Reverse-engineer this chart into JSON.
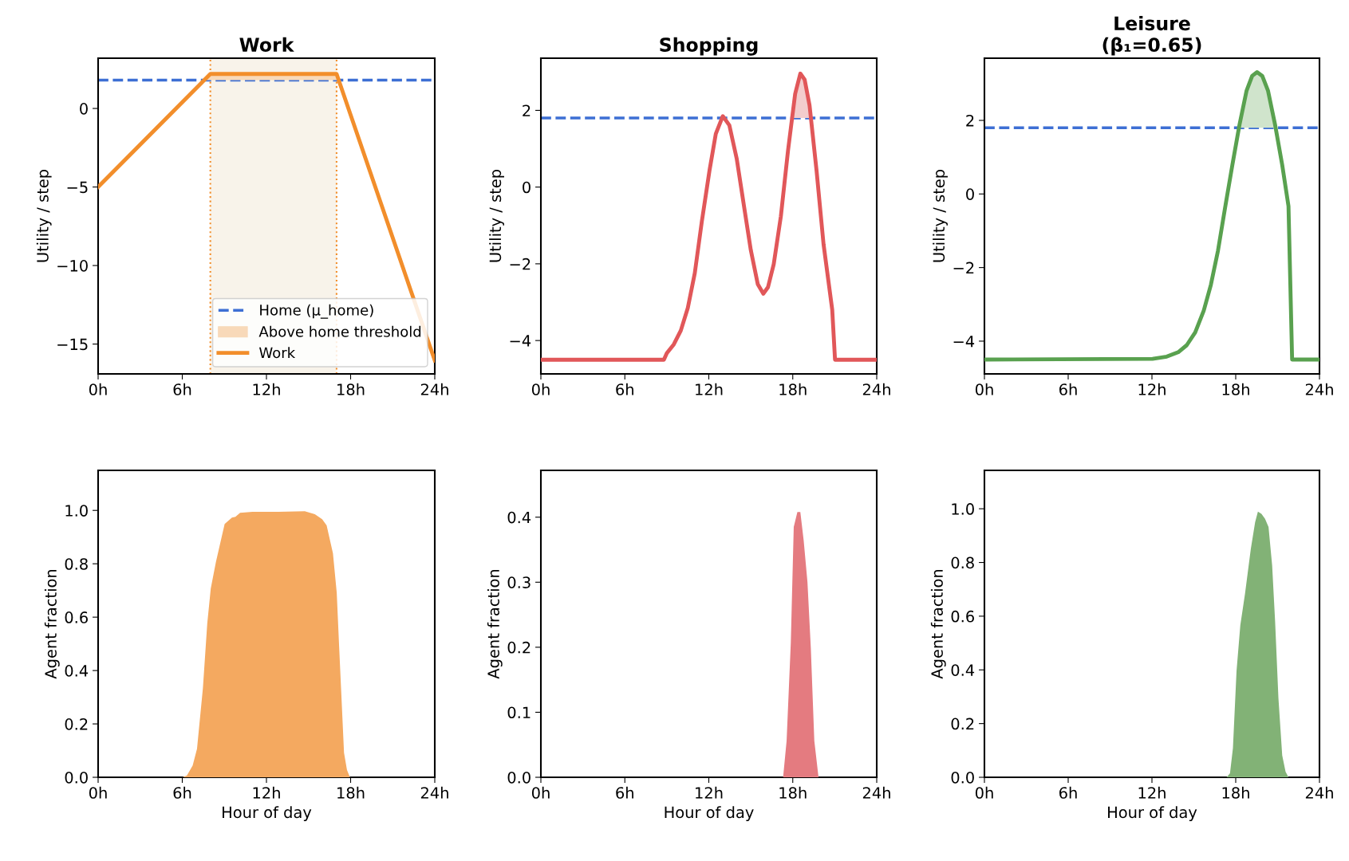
{
  "chart_data": [
    {
      "type": "line",
      "title": "Work",
      "ylabel": "Utility / step",
      "xlim": [
        0,
        24
      ],
      "xticks": [
        {
          "value": 0,
          "label": "0h"
        },
        {
          "value": 6,
          "label": "6h"
        },
        {
          "value": 12,
          "label": "12h"
        },
        {
          "value": 18,
          "label": "18h"
        },
        {
          "value": 24,
          "label": "24h"
        }
      ],
      "ylim": [
        -16.9,
        3.2
      ],
      "yticks": [
        {
          "value": -15,
          "label": "−15"
        },
        {
          "value": -10,
          "label": "−10"
        },
        {
          "value": -5,
          "label": "−5"
        },
        0
      ],
      "legend": "lower right",
      "ref_lines": [
        {
          "axis": "y",
          "value": 1.8,
          "label": "Home (μ_home)",
          "color": "#3d6fd4",
          "line_style": "dashed"
        },
        {
          "axis": "x",
          "value": 8,
          "color": "#f28e2b",
          "line_style": "dotted"
        },
        {
          "axis": "x",
          "value": 17,
          "color": "#f28e2b",
          "line_style": "dotted"
        }
      ],
      "bands": [
        {
          "axis": "x",
          "from": 8,
          "to": 17,
          "color": "#f8f3ea"
        }
      ],
      "series": [
        {
          "name": "Above home threshold",
          "type": "area",
          "color": "#f8d9b9",
          "x": [
            7.56,
            8,
            17,
            17.15
          ],
          "values": [
            1.8,
            2.2,
            2.2,
            1.8
          ]
        },
        {
          "name": "Work",
          "type": "line",
          "color": "#f28e2b",
          "x": [
            0,
            8,
            17,
            24
          ],
          "values": [
            -5,
            2.2,
            2.2,
            -16.05
          ]
        }
      ]
    },
    {
      "type": "line",
      "title": "Shopping",
      "ylabel": "Utility / step",
      "xlim": [
        0,
        24
      ],
      "xticks": [
        {
          "value": 0,
          "label": "0h"
        },
        {
          "value": 6,
          "label": "6h"
        },
        {
          "value": 12,
          "label": "12h"
        },
        {
          "value": 18,
          "label": "18h"
        },
        {
          "value": 24,
          "label": "24h"
        }
      ],
      "ylim": [
        -4.87,
        3.36
      ],
      "yticks": [
        {
          "value": -4,
          "label": "−4"
        },
        {
          "value": -2,
          "label": "−2"
        },
        0,
        2
      ],
      "ref_lines": [
        {
          "axis": "y",
          "value": 1.8,
          "color": "#3d6fd4",
          "line_style": "dashed"
        }
      ],
      "series": [
        {
          "type": "area",
          "color": "#f3cdcd",
          "x": [
            17.95,
            18.17,
            18.54,
            18.85,
            19.2,
            19.3
          ],
          "values": [
            1.8,
            2.43,
            2.96,
            2.8,
            2.13,
            1.8
          ]
        },
        {
          "type": "line",
          "color": "#e15759",
          "x": [
            0,
            8.79,
            9.0,
            9.5,
            10.0,
            10.5,
            11.0,
            11.5,
            12.05,
            12.5,
            13.0,
            13.47,
            14.0,
            14.5,
            15.0,
            15.5,
            15.9,
            16.23,
            16.64,
            17.15,
            17.66,
            18.17,
            18.54,
            18.85,
            19.2,
            19.7,
            20.2,
            20.82,
            21.02,
            24
          ],
          "values": [
            -4.5,
            -4.5,
            -4.33,
            -4.1,
            -3.74,
            -3.15,
            -2.24,
            -0.9,
            0.43,
            1.39,
            1.85,
            1.61,
            0.73,
            -0.46,
            -1.64,
            -2.53,
            -2.78,
            -2.61,
            -2.01,
            -0.76,
            0.95,
            2.43,
            2.96,
            2.8,
            2.13,
            0.43,
            -1.49,
            -3.2,
            -4.5,
            -4.5
          ]
        }
      ]
    },
    {
      "type": "line",
      "title": "Leisure\n(β₁=0.65)",
      "ylabel": "Utility / step",
      "xlim": [
        0,
        24
      ],
      "xticks": [
        {
          "value": 0,
          "label": "0h"
        },
        {
          "value": 6,
          "label": "6h"
        },
        {
          "value": 12,
          "label": "12h"
        },
        {
          "value": 18,
          "label": "18h"
        },
        {
          "value": 24,
          "label": "24h"
        }
      ],
      "ylim": [
        -4.89,
        3.69
      ],
      "yticks": [
        {
          "value": -4,
          "label": "−4"
        },
        {
          "value": -2,
          "label": "−2"
        },
        0,
        2
      ],
      "ref_lines": [
        {
          "axis": "y",
          "value": 1.8,
          "color": "#3d6fd4",
          "line_style": "dashed"
        }
      ],
      "series": [
        {
          "type": "area",
          "color": "#d0e4cc",
          "x": [
            18.25,
            18.78,
            19.18,
            19.53,
            19.9,
            20.31,
            20.85
          ],
          "values": [
            1.8,
            2.81,
            3.21,
            3.31,
            3.21,
            2.81,
            1.8
          ]
        },
        {
          "type": "line",
          "color": "#59a14f",
          "x": [
            0,
            12.04,
            13.06,
            13.88,
            14.49,
            15.1,
            15.71,
            16.22,
            16.73,
            17.24,
            17.76,
            18.27,
            18.78,
            19.18,
            19.53,
            19.9,
            20.31,
            20.82,
            21.33,
            21.78,
            22.04,
            24
          ],
          "values": [
            -4.5,
            -4.48,
            -4.42,
            -4.3,
            -4.11,
            -3.76,
            -3.17,
            -2.47,
            -1.54,
            -0.37,
            0.79,
            1.88,
            2.81,
            3.21,
            3.31,
            3.21,
            2.81,
            1.88,
            0.79,
            -0.33,
            -4.5,
            -4.5
          ]
        }
      ]
    },
    {
      "type": "area",
      "xlabel": "Hour of day",
      "ylabel": "Agent fraction",
      "xlim": [
        0,
        24
      ],
      "xticks": [
        {
          "value": 0,
          "label": "0h"
        },
        {
          "value": 6,
          "label": "6h"
        },
        {
          "value": 12,
          "label": "12h"
        },
        {
          "value": 18,
          "label": "18h"
        },
        {
          "value": 24,
          "label": "24h"
        }
      ],
      "ylim": [
        0,
        1.15
      ],
      "yticks": [
        {
          "value": 0,
          "label": "0.0"
        },
        0.2,
        0.4,
        0.6,
        0.8,
        {
          "value": 1,
          "label": "1.0"
        }
      ],
      "series": [
        {
          "color": "#f4a960",
          "x": [
            0,
            6.02,
            6.33,
            6.74,
            7.05,
            7.47,
            7.78,
            8.03,
            8.4,
            9.02,
            9.54,
            9.79,
            10.12,
            11.0,
            12.86,
            14.73,
            15.45,
            15.97,
            16.29,
            16.74,
            17.01,
            17.18,
            17.53,
            17.74,
            17.95,
            24
          ],
          "values": [
            0,
            0,
            0.007,
            0.044,
            0.107,
            0.334,
            0.576,
            0.707,
            0.807,
            0.949,
            0.973,
            0.976,
            0.991,
            0.995,
            0.995,
            0.997,
            0.986,
            0.967,
            0.944,
            0.839,
            0.692,
            0.492,
            0.092,
            0.028,
            0,
            0
          ]
        }
      ]
    },
    {
      "type": "area",
      "xlabel": "Hour of day",
      "ylabel": "Agent fraction",
      "xlim": [
        0,
        24
      ],
      "xticks": [
        {
          "value": 0,
          "label": "0h"
        },
        {
          "value": 6,
          "label": "6h"
        },
        {
          "value": 12,
          "label": "12h"
        },
        {
          "value": 18,
          "label": "18h"
        },
        {
          "value": 24,
          "label": "24h"
        }
      ],
      "ylim": [
        0,
        0.472
      ],
      "yticks": [
        {
          "value": 0,
          "label": "0.0"
        },
        0.1,
        0.2,
        0.3,
        0.4
      ],
      "series": [
        {
          "color": "#e47b80",
          "x": [
            0,
            17.31,
            17.56,
            17.86,
            18.07,
            18.33,
            18.54,
            18.78,
            19.05,
            19.29,
            19.54,
            19.84,
            24
          ],
          "values": [
            0,
            0,
            0.056,
            0.207,
            0.385,
            0.408,
            0.408,
            0.364,
            0.3,
            0.199,
            0.056,
            0,
            0
          ]
        }
      ]
    },
    {
      "type": "area",
      "xlabel": "Hour of day",
      "ylabel": "Agent fraction",
      "xlim": [
        0,
        24
      ],
      "xticks": [
        {
          "value": 0,
          "label": "0h"
        },
        {
          "value": 6,
          "label": "6h"
        },
        {
          "value": 12,
          "label": "12h"
        },
        {
          "value": 18,
          "label": "18h"
        },
        {
          "value": 24,
          "label": "24h"
        }
      ],
      "ylim": [
        0,
        1.143
      ],
      "yticks": [
        {
          "value": 0,
          "label": "0.0"
        },
        0.2,
        0.4,
        0.6,
        0.8,
        {
          "value": 1,
          "label": "1.0"
        }
      ],
      "series": [
        {
          "color": "#82b276",
          "x": [
            0,
            17.35,
            17.59,
            17.8,
            18.06,
            18.33,
            18.67,
            19.08,
            19.39,
            19.59,
            19.84,
            20.1,
            20.35,
            20.61,
            20.82,
            21.06,
            21.33,
            21.57,
            21.78,
            24
          ],
          "values": [
            0,
            0,
            0.015,
            0.108,
            0.396,
            0.566,
            0.685,
            0.85,
            0.95,
            0.989,
            0.981,
            0.963,
            0.932,
            0.788,
            0.582,
            0.294,
            0.082,
            0.021,
            0,
            0
          ]
        }
      ]
    }
  ]
}
